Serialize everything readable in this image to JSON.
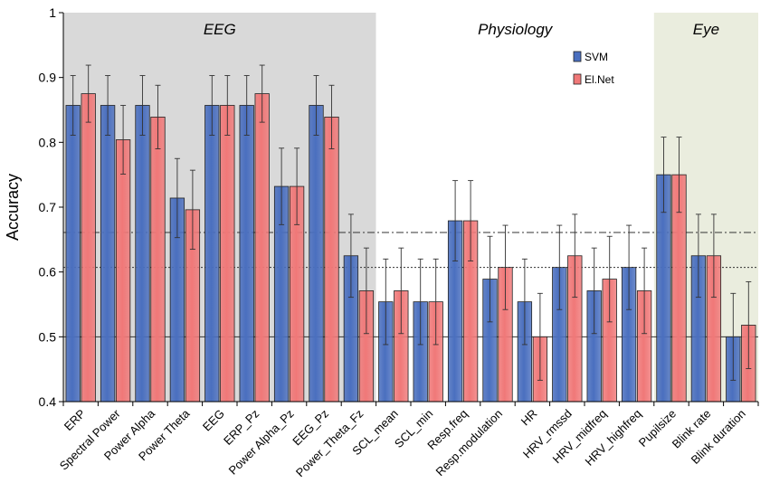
{
  "chart_data": {
    "type": "bar",
    "title": "",
    "xlabel": "",
    "ylabel": "Accuracy",
    "ylim": [
      0.4,
      1.0
    ],
    "yticks": [
      "0.4",
      "0.5",
      "0.6",
      "0.7",
      "0.8",
      "0.9",
      "1"
    ],
    "ytick_values": [
      0.4,
      0.5,
      0.6,
      0.7,
      0.8,
      0.9,
      1.0
    ],
    "categories": [
      "ERP",
      "Spectral Power",
      "Power Alpha",
      "Power Theta",
      "EEG",
      "ERP_Pz",
      "Power Alpha_Pz",
      "EEG_Pz",
      "Power_Theta_Fz",
      "SCL_mean",
      "SCL_min",
      "Resp.freq",
      "Resp.modulation",
      "HR",
      "HRV_rmssd",
      "HRV_midfreq",
      "HRV_highfreq",
      "Pupilsize",
      "Blink rate",
      "Blink duration"
    ],
    "series": [
      {
        "name": "SVM",
        "color": "#4a6fbf",
        "values": [
          0.857,
          0.857,
          0.857,
          0.714,
          0.857,
          0.857,
          0.732,
          0.857,
          0.625,
          0.554,
          0.554,
          0.679,
          0.589,
          0.554,
          0.607,
          0.571,
          0.607,
          0.75,
          0.625,
          0.5
        ],
        "errors": [
          0.046,
          0.046,
          0.046,
          0.061,
          0.046,
          0.046,
          0.059,
          0.046,
          0.064,
          0.066,
          0.066,
          0.062,
          0.066,
          0.066,
          0.065,
          0.066,
          0.065,
          0.058,
          0.064,
          0.067
        ]
      },
      {
        "name": "El.Net",
        "color": "#f07878",
        "values": [
          0.875,
          0.804,
          0.839,
          0.696,
          0.857,
          0.875,
          0.732,
          0.839,
          0.571,
          0.571,
          0.554,
          0.679,
          0.607,
          0.5,
          0.625,
          0.589,
          0.571,
          0.75,
          0.625,
          0.518
        ],
        "errors": [
          0.044,
          0.053,
          0.049,
          0.061,
          0.046,
          0.044,
          0.059,
          0.049,
          0.066,
          0.066,
          0.066,
          0.062,
          0.065,
          0.067,
          0.064,
          0.066,
          0.066,
          0.058,
          0.064,
          0.067
        ]
      }
    ],
    "groups": [
      {
        "label": "EEG",
        "start": 0,
        "end": 8,
        "shade": "#d9d9d9"
      },
      {
        "label": "Physiology",
        "start": 9,
        "end": 16,
        "shade": "#ffffff"
      },
      {
        "label": "Eye",
        "start": 17,
        "end": 19,
        "shade": "#eaedde"
      }
    ],
    "reference_lines": [
      {
        "value": 0.5,
        "style": "solid"
      },
      {
        "value": 0.607,
        "style": "dotted"
      },
      {
        "value": 0.661,
        "style": "dash-dot"
      }
    ],
    "legend": {
      "position": "top-right-inside",
      "entries": [
        "SVM",
        "El.Net"
      ]
    }
  }
}
